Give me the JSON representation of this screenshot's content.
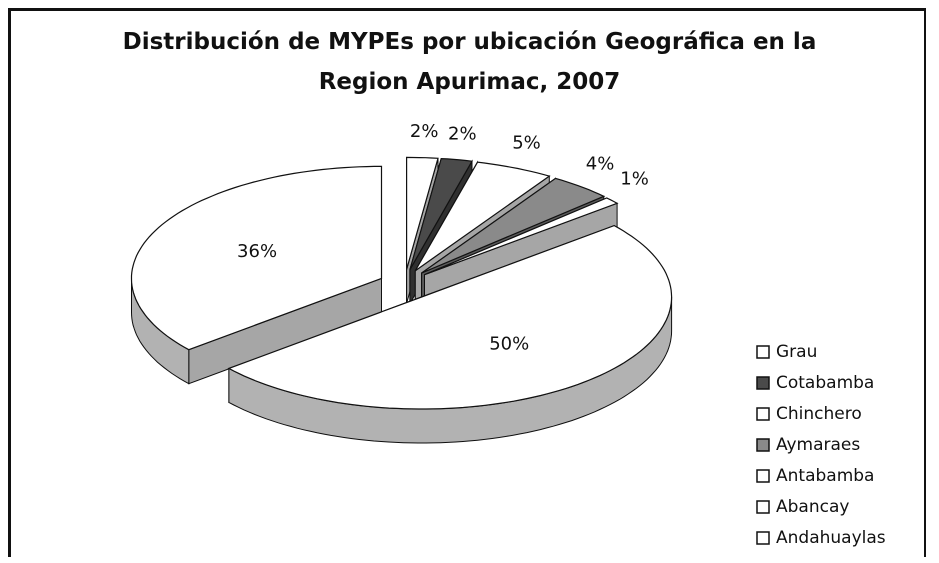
{
  "chart_data": {
    "type": "pie",
    "title": "Distribución de MYPEs por ubicación Geográfica en la\nRegion Apurimac, 2007",
    "categories": [
      "Grau",
      "Cotabamba",
      "Chinchero",
      "Aymaraes",
      "Antabamba",
      "Abancay",
      "Andahuaylas"
    ],
    "values": [
      2,
      2,
      5,
      4,
      1,
      50,
      36
    ],
    "value_labels": [
      "2%",
      "2%",
      "5%",
      "4%",
      "1%",
      "50%",
      "36%"
    ],
    "colors": [
      "#ffffff",
      "#4a4a4a",
      "#ffffff",
      "#8a8a8a",
      "#ffffff",
      "#ffffff",
      "#ffffff"
    ],
    "legend": "right"
  }
}
